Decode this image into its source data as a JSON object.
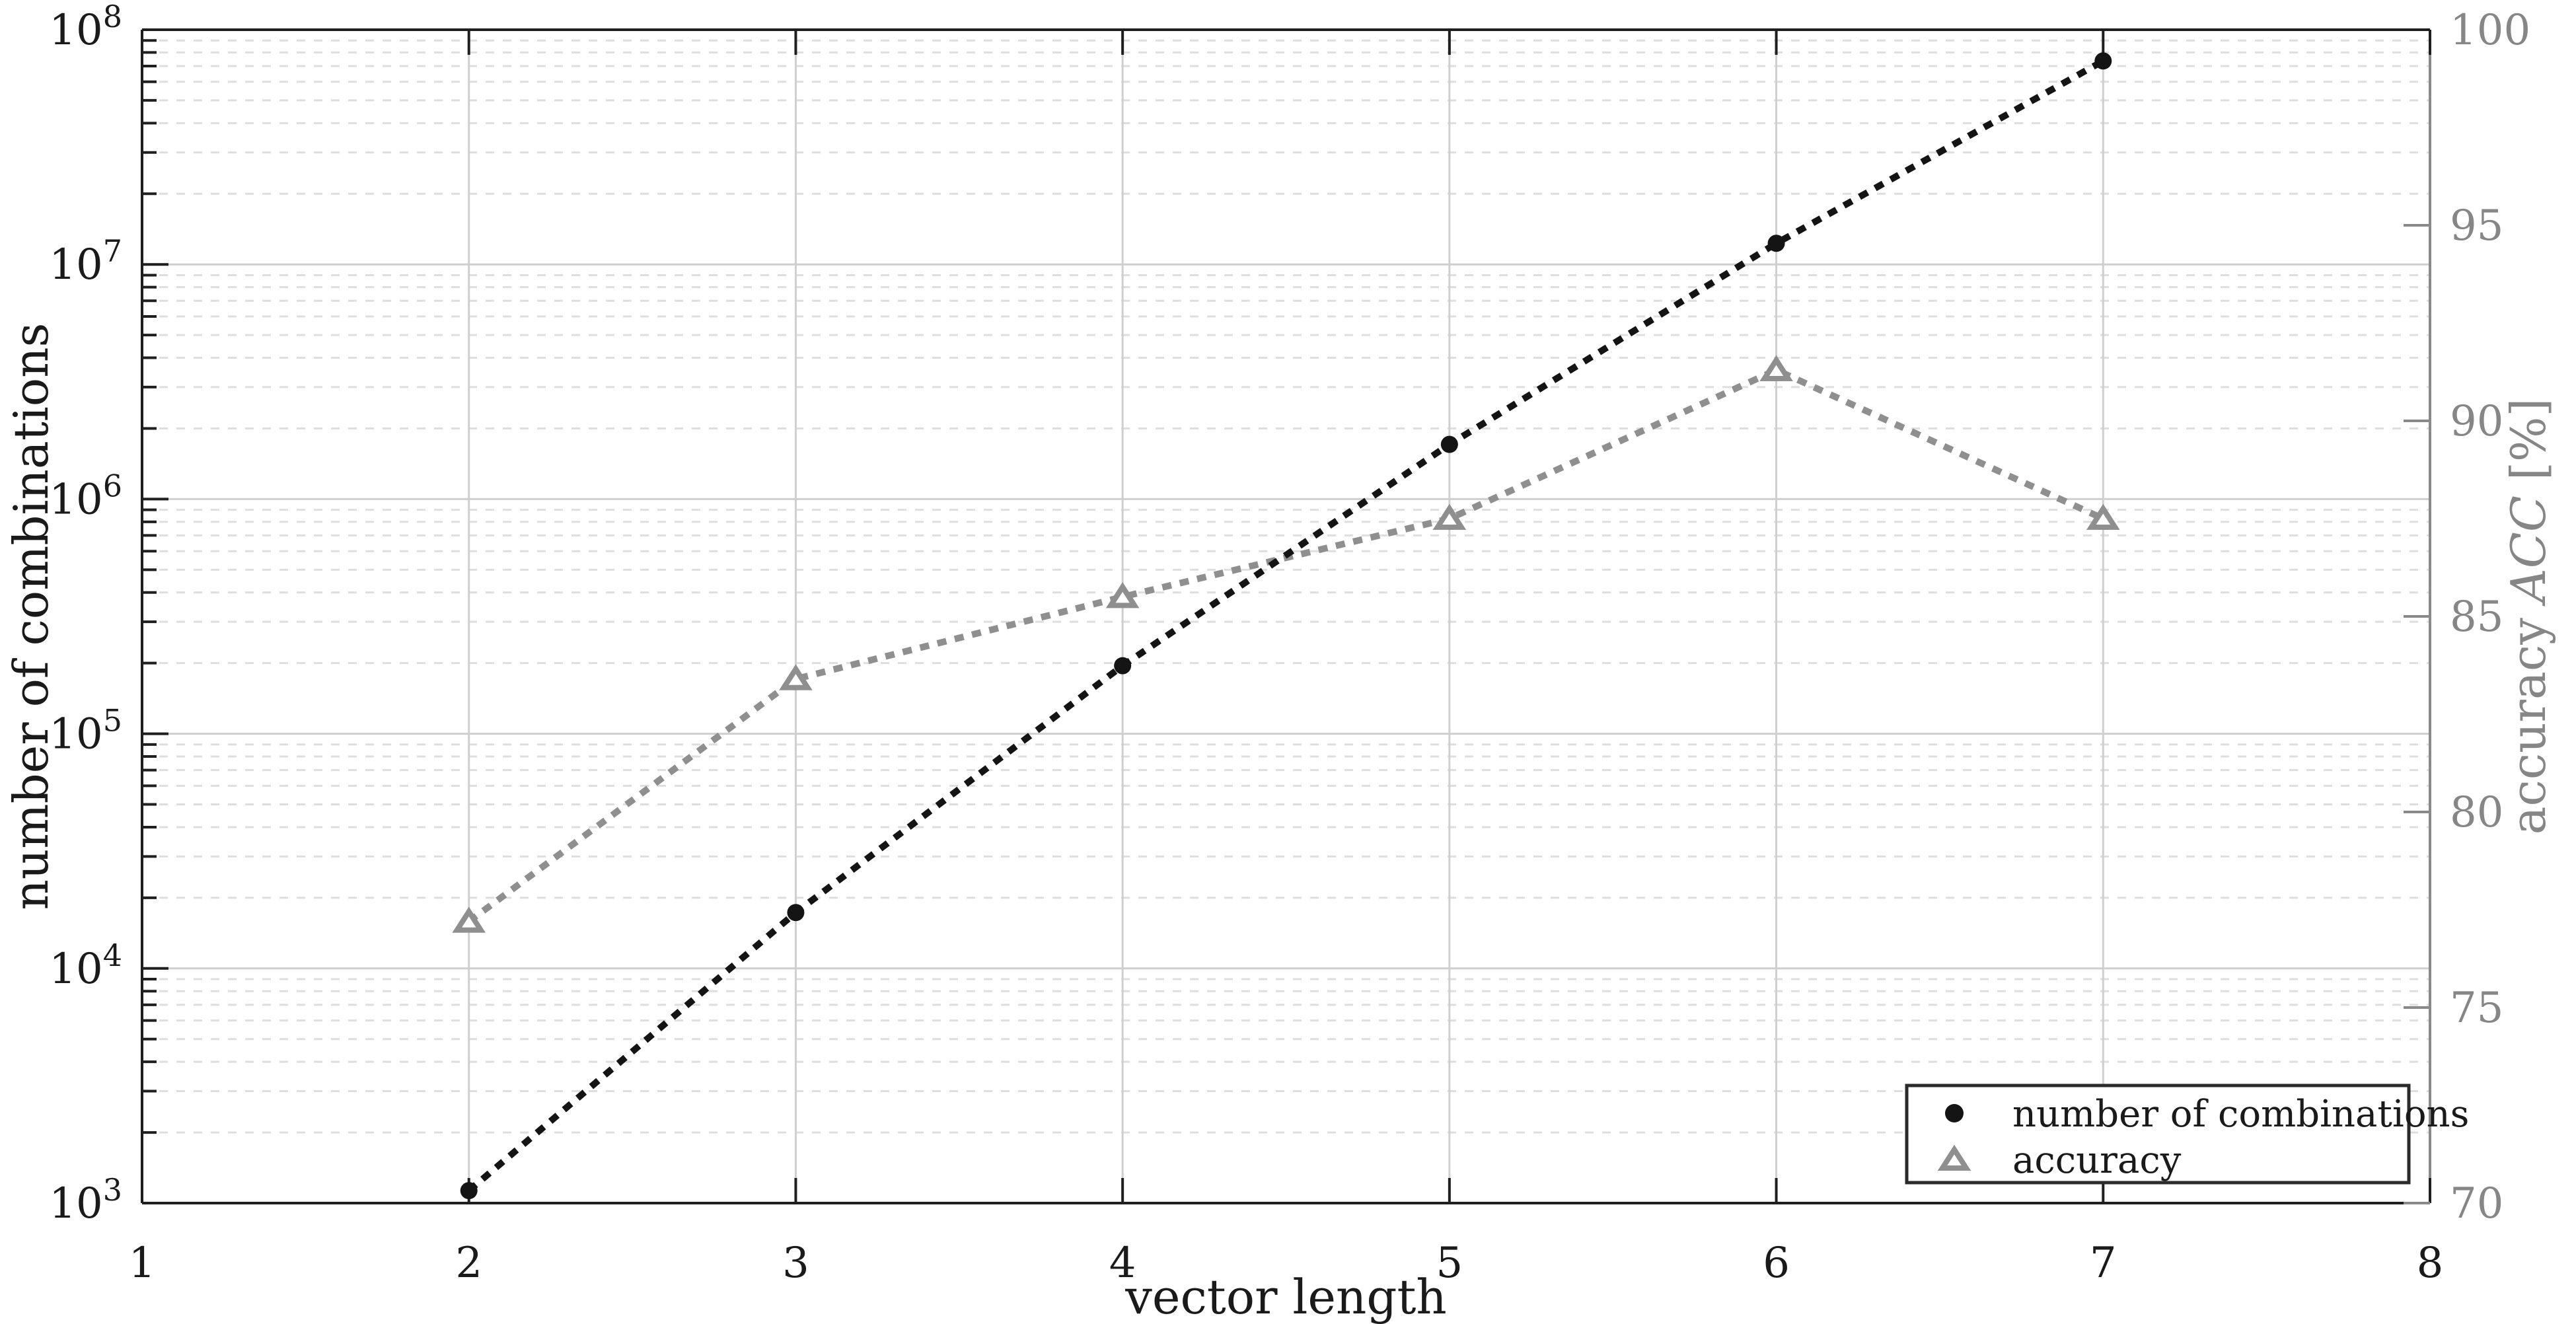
{
  "figure": {
    "background": "#ffffff",
    "title": "",
    "xlabel": "vector length",
    "ylabel_left": "number of combinations",
    "ylabel_right": {
      "prefix": "accuracy ",
      "italic": "ACC",
      "suffix": " [%]"
    },
    "colors": {
      "combinations_line": "#141414",
      "accuracy_line": "#8f8f8f",
      "axis_black": "#1f1f1f",
      "axis_gray": "#8a8a8a",
      "grid_major": "#cfcfcf",
      "grid_minor": "#dedede",
      "tick_label_black": "#1a1a1a",
      "tick_label_gray": "#868686",
      "legend_border": "#2b2b2b",
      "legend_bg": "#ffffff"
    },
    "legend": {
      "position": "bottom-right",
      "items": [
        {
          "label": "number of combinations",
          "marker": "filled-circle"
        },
        {
          "label": "accuracy",
          "marker": "open-triangle"
        }
      ]
    }
  },
  "chart_data": {
    "type": "line",
    "x": [
      2,
      3,
      4,
      5,
      6,
      7
    ],
    "series": [
      {
        "name": "number of combinations",
        "axis": "left-log",
        "marker": "filled-circle",
        "line_style": "dotted",
        "color": "#141414",
        "values": [
          1130,
          17300,
          195000,
          1710000,
          12300000,
          73600000
        ]
      },
      {
        "name": "accuracy",
        "axis": "right-linear",
        "marker": "open-triangle",
        "line_style": "dotted",
        "color": "#8f8f8f",
        "values": [
          77.2,
          83.4,
          85.5,
          87.5,
          91.3,
          87.5
        ]
      }
    ],
    "x_axis": {
      "label": "vector length",
      "min": 1,
      "max": 8,
      "ticks": [
        1,
        2,
        3,
        4,
        5,
        6,
        7,
        8
      ]
    },
    "y_axis_left": {
      "label": "number of combinations",
      "scale": "log",
      "min": 1000,
      "max": 100000000,
      "tick_base": "10",
      "tick_exponents": [
        8,
        7,
        6,
        5,
        4,
        3
      ]
    },
    "y_axis_right": {
      "label": "accuracy ACC [%]",
      "scale": "linear",
      "min": 70,
      "max": 100,
      "ticks": [
        100,
        95,
        90,
        85,
        80,
        75,
        70
      ]
    },
    "grid": {
      "vertical_at": [
        2,
        3,
        4,
        5,
        6,
        7
      ],
      "horizontal_major": "log-decades-solid",
      "horizontal_minor": "log-minors-dashed",
      "legend_position": "bottom-right"
    }
  }
}
